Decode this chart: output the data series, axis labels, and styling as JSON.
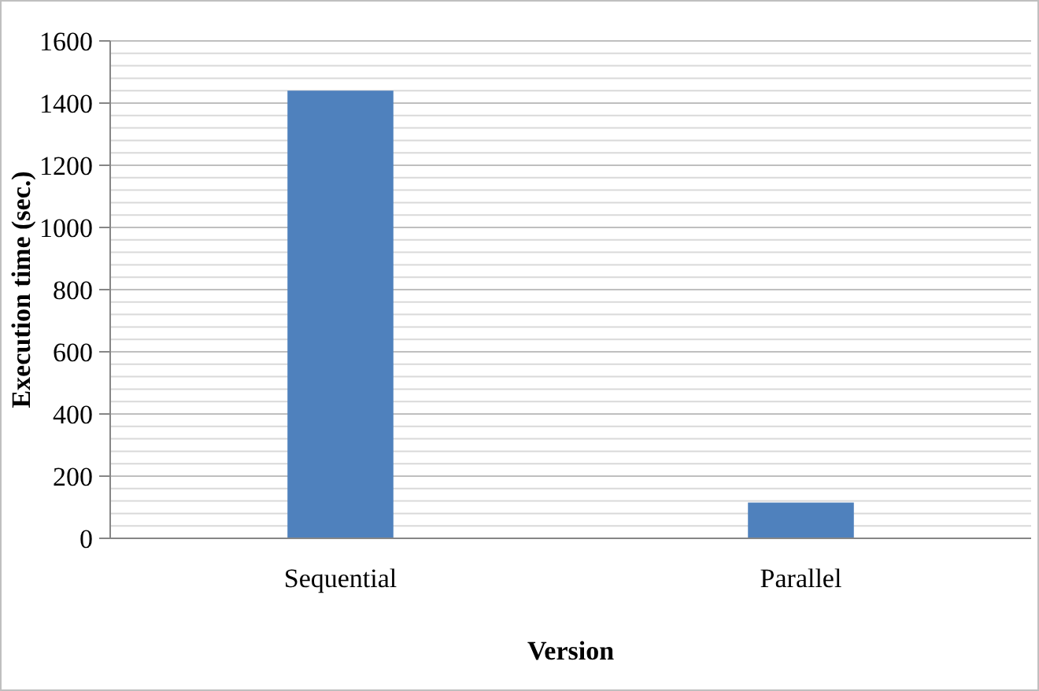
{
  "chart_data": {
    "type": "bar",
    "xlabel": "Version",
    "ylabel": "Execution time (sec.)",
    "categories": [
      "Sequential",
      "Parallel"
    ],
    "values": [
      1440,
      115
    ],
    "color": "#4f81bd",
    "ylim": [
      0,
      1600
    ],
    "yticks": [
      0,
      {
        "value": 40,
        "label": null
      },
      {
        "value": 80,
        "label": null
      },
      {
        "value": 120,
        "label": null
      },
      {
        "value": 160,
        "label": null
      },
      200,
      {
        "value": 240,
        "label": null
      },
      {
        "value": 280,
        "label": null
      },
      {
        "value": 320,
        "label": null
      },
      {
        "value": 360,
        "label": null
      },
      400,
      {
        "value": 440,
        "label": null
      },
      {
        "value": 480,
        "label": null
      },
      {
        "value": 520,
        "label": null
      },
      {
        "value": 560,
        "label": null
      },
      600,
      {
        "value": 640,
        "label": null
      },
      {
        "value": 680,
        "label": null
      },
      {
        "value": 720,
        "label": null
      },
      {
        "value": 760,
        "label": null
      },
      800,
      {
        "value": 840,
        "label": null
      },
      {
        "value": 880,
        "label": null
      },
      {
        "value": 920,
        "label": null
      },
      {
        "value": 960,
        "label": null
      },
      1000,
      {
        "value": 1040,
        "label": null
      },
      {
        "value": 1080,
        "label": null
      },
      {
        "value": 1120,
        "label": null
      },
      {
        "value": 1160,
        "label": null
      },
      1200,
      {
        "value": 1240,
        "label": null
      },
      {
        "value": 1280,
        "label": null
      },
      {
        "value": 1320,
        "label": null
      },
      {
        "value": 1360,
        "label": null
      },
      1400,
      {
        "value": 1440,
        "label": null
      },
      {
        "value": 1480,
        "label": null
      },
      {
        "value": 1520,
        "label": null
      },
      {
        "value": 1560,
        "label": null
      },
      1600
    ],
    "grid": "y"
  }
}
